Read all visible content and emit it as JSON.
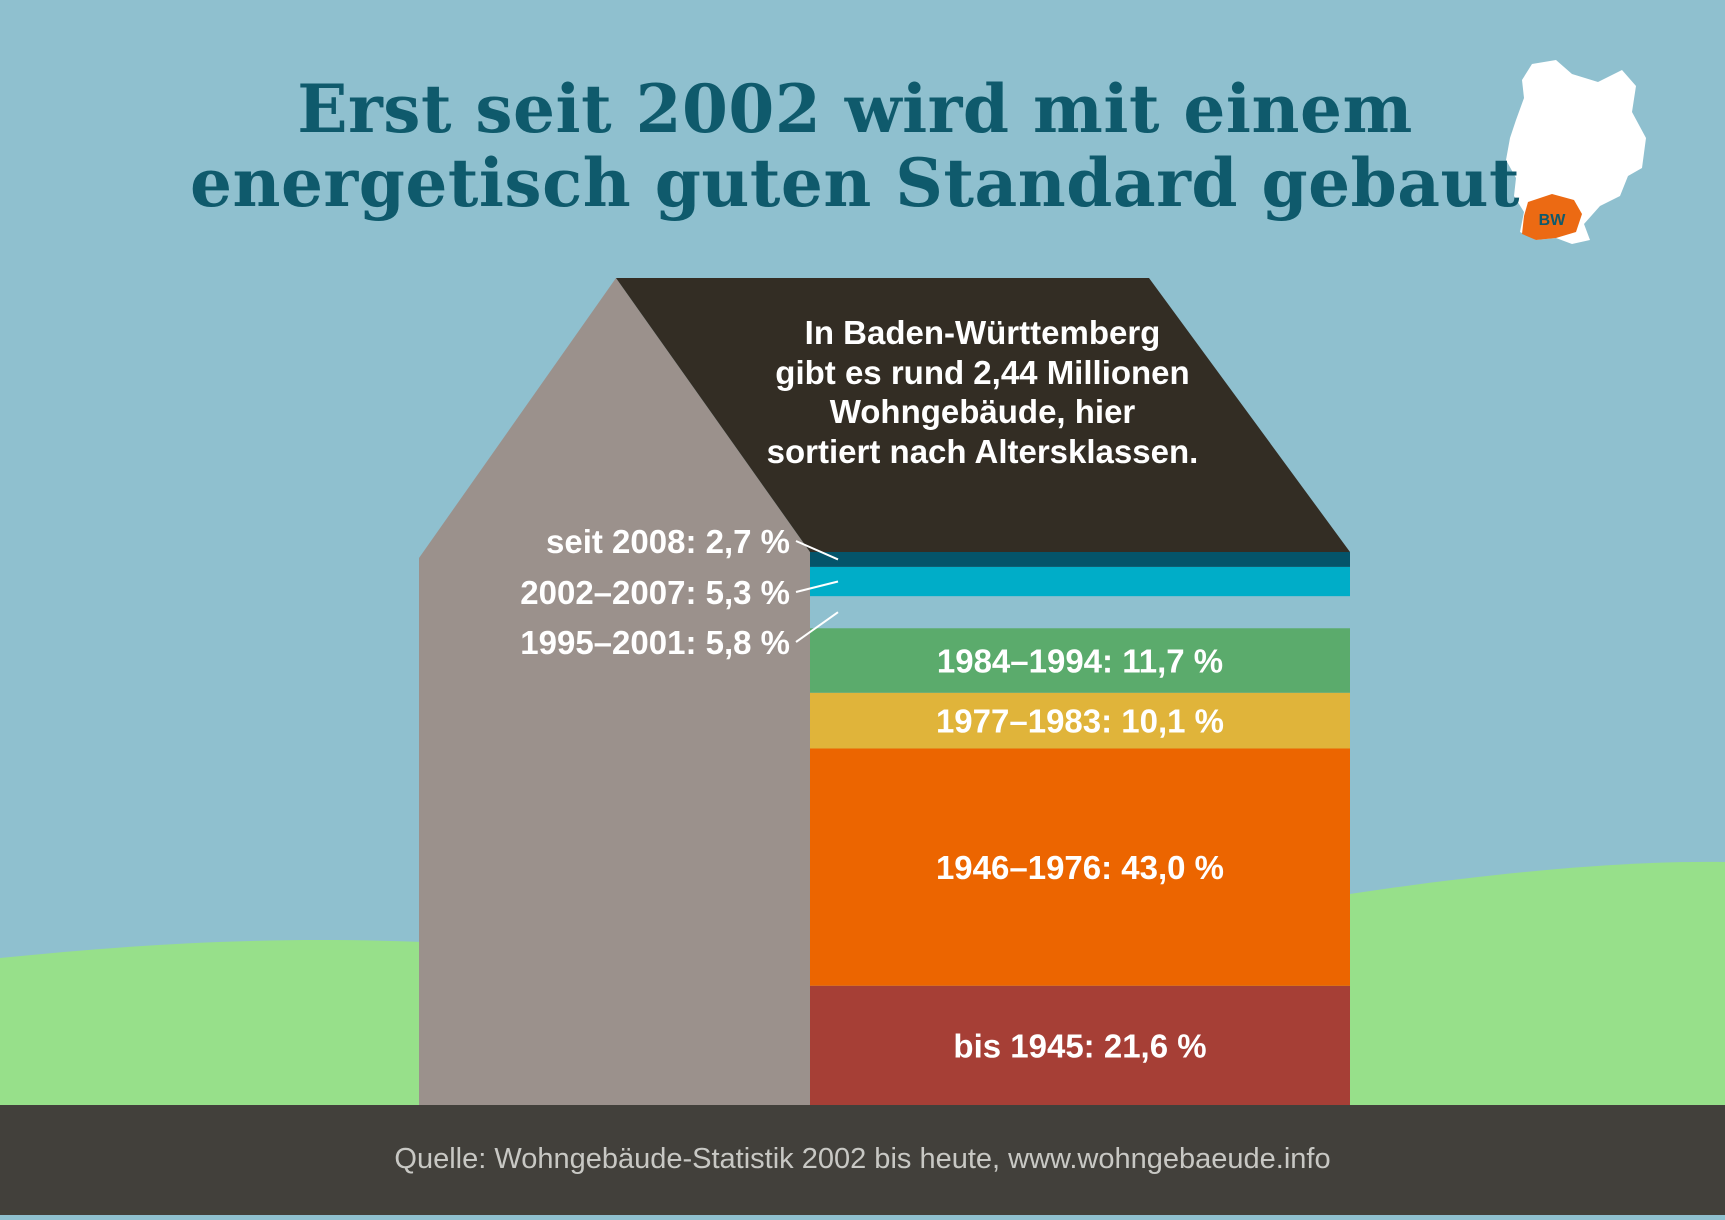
{
  "title": {
    "line1": "Erst seit 2002 wird mit einem",
    "line2": "energetisch guten Standard gebaut"
  },
  "intro": {
    "line1": "In Baden-Württemberg",
    "line2": "gibt es rund 2,44 Millionen",
    "line3": "Wohngebäude, hier",
    "line4": "sortiert nach Altersklassen."
  },
  "map_badge": "BW",
  "source": "Quelle: Wohngebäude-Statistik 2002 bis heute, www.wohngebaeude.info",
  "colors": {
    "sky": "#8fc0cf",
    "title": "#0f5a6c",
    "roof": "#332d24",
    "wall": "#9b918c",
    "grass": "#97e08a",
    "footer": "#42403b",
    "map": "#ffffff",
    "map_highlight": "#ec6a13"
  },
  "chart_data": {
    "type": "stacked-bar",
    "title": "Erst seit 2002 wird mit einem energetisch guten Standard gebaut",
    "total_buildings": "2,44 Millionen",
    "unit": "%",
    "order": "bottom-to-top",
    "segments": [
      {
        "period": "bis 1945",
        "value": 21.6,
        "label": "bis 1945: 21,6 %",
        "color": "#a63f36",
        "label_position": "inside"
      },
      {
        "period": "1946–1976",
        "value": 43.0,
        "label": "1946–1976: 43,0 %",
        "color": "#ec6500",
        "label_position": "inside"
      },
      {
        "period": "1977–1983",
        "value": 10.1,
        "label": "1977–1983: 10,1 %",
        "color": "#e0b43a",
        "label_position": "inside"
      },
      {
        "period": "1984–1994",
        "value": 11.7,
        "label": "1984–1994: 11,7 %",
        "color": "#5bab6c",
        "label_position": "inside"
      },
      {
        "period": "1995–2001",
        "value": 5.8,
        "label": "1995–2001: 5,8 %",
        "color": "#8fc0cf",
        "label_position": "outside"
      },
      {
        "period": "2002–2007",
        "value": 5.3,
        "label": "2002–2007: 5,3 %",
        "color": "#00adc8",
        "label_position": "outside"
      },
      {
        "period": "seit 2008",
        "value": 2.7,
        "label": "seit 2008: 2,7 %",
        "color": "#04546a",
        "label_position": "outside"
      }
    ]
  }
}
